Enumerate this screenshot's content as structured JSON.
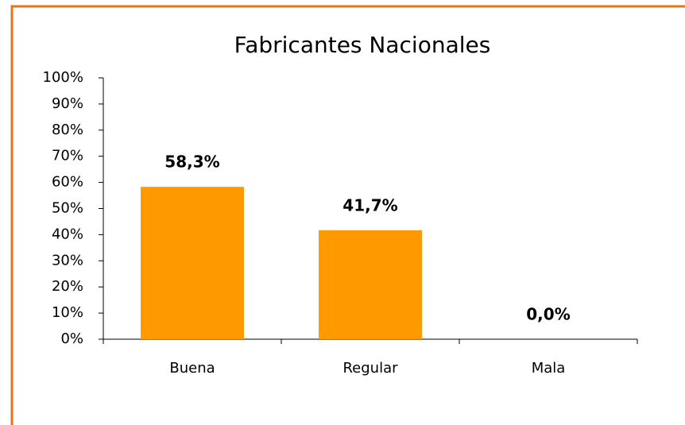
{
  "chart_data": {
    "type": "bar",
    "title": "Fabricantes Nacionales",
    "categories": [
      "Buena",
      "Regular",
      "Mala"
    ],
    "values": [
      58.3,
      41.7,
      0.0
    ],
    "value_labels": [
      "58,3%",
      "41,7%",
      "0,0%"
    ],
    "color": "#ff9900",
    "ylim": [
      0,
      100
    ],
    "yticks": [
      {
        "value": 0,
        "label": "0%"
      },
      {
        "value": 10,
        "label": "10%"
      },
      {
        "value": 20,
        "label": "20%"
      },
      {
        "value": 30,
        "label": "30%"
      },
      {
        "value": 40,
        "label": "40%"
      },
      {
        "value": 50,
        "label": "50%"
      },
      {
        "value": 60,
        "label": "60%"
      },
      {
        "value": 70,
        "label": "70%"
      },
      {
        "value": 80,
        "label": "80%"
      },
      {
        "value": 90,
        "label": "90%"
      },
      {
        "value": 100,
        "label": "100%"
      }
    ],
    "grid": false
  }
}
